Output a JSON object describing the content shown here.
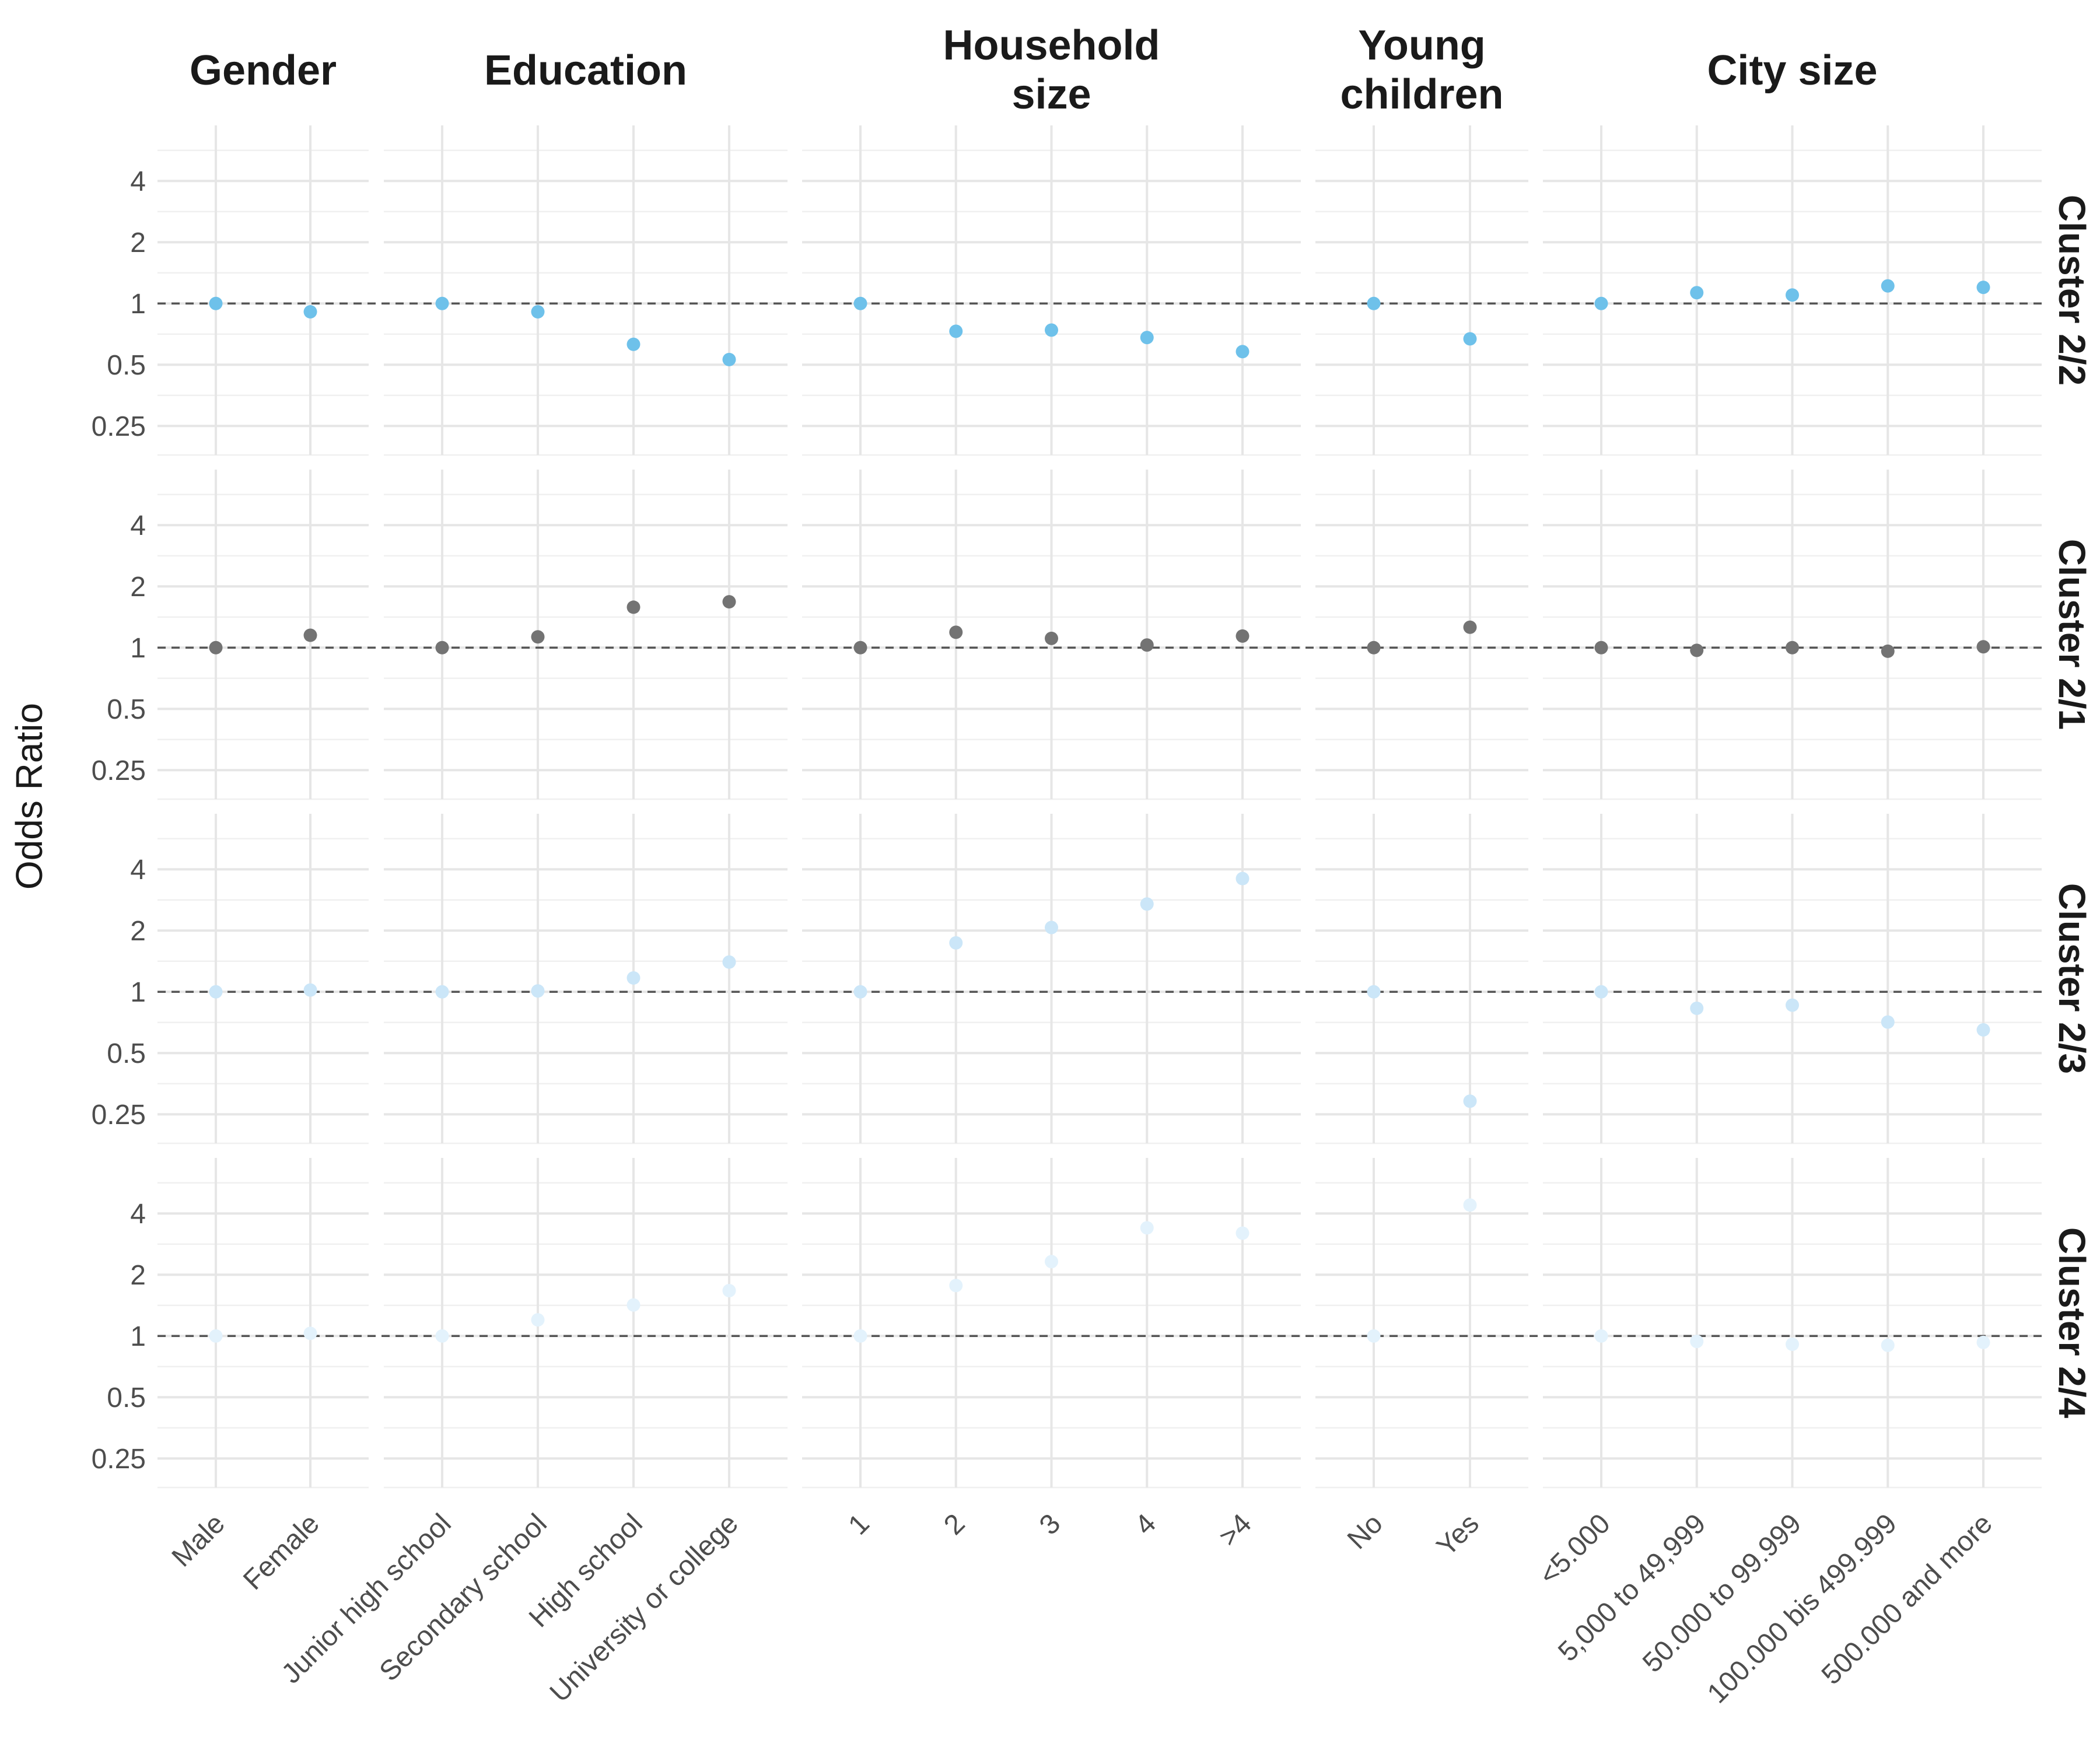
{
  "chart_data": {
    "type": "scatter",
    "ylabel": "Odds Ratio",
    "y_scale": "log2",
    "ylim": [
      0.18,
      7.5
    ],
    "y_ticks": [
      "0.25",
      "0.5",
      "1",
      "2",
      "4"
    ],
    "y_tick_values": [
      0.25,
      0.5,
      1,
      2,
      4
    ],
    "reference_line": 1,
    "grid": true,
    "facet_columns": [
      {
        "title": "Gender",
        "categories": [
          "Male",
          "Female"
        ]
      },
      {
        "title": "Education",
        "categories": [
          "Junior high school",
          "Secondary school",
          "High school",
          "University or college"
        ]
      },
      {
        "title": "Household\nsize",
        "categories": [
          "1",
          "2",
          "3",
          "4",
          ">4"
        ]
      },
      {
        "title": "Young\nchildren",
        "categories": [
          "No",
          "Yes"
        ]
      },
      {
        "title": "City size",
        "categories": [
          "<5.000",
          "5,000 to 49,999",
          "50.000 to 99.999",
          "100.000 bis 499.999",
          "500.000 and more"
        ]
      }
    ],
    "facet_rows": [
      {
        "label": "Cluster 2/2",
        "color": "#6ec1ea",
        "values": [
          [
            1,
            0.91
          ],
          [
            1,
            0.91,
            0.63,
            0.53
          ],
          [
            1,
            0.73,
            0.74,
            0.68,
            0.58
          ],
          [
            1,
            0.67
          ],
          [
            1,
            1.13,
            1.1,
            1.22,
            1.2
          ]
        ]
      },
      {
        "label": "Cluster 2/1",
        "color": "#737373",
        "values": [
          [
            1,
            1.15
          ],
          [
            1,
            1.13,
            1.58,
            1.68
          ],
          [
            1,
            1.19,
            1.11,
            1.03,
            1.14
          ],
          [
            1,
            1.26
          ],
          [
            1,
            0.97,
            1,
            0.96,
            1.01
          ]
        ]
      },
      {
        "label": "Cluster 2/3",
        "color": "#cbe6f8",
        "values": [
          [
            1,
            1.02
          ],
          [
            1,
            1.01,
            1.17,
            1.4
          ],
          [
            1,
            1.74,
            2.07,
            2.7,
            3.6
          ],
          [
            1,
            0.29
          ],
          [
            1,
            0.83,
            0.86,
            0.71,
            0.65
          ]
        ]
      },
      {
        "label": "Cluster 2/4",
        "color": "#e3f2fc",
        "values": [
          [
            1,
            1.03
          ],
          [
            1,
            1.2,
            1.42,
            1.67
          ],
          [
            1,
            1.77,
            2.32,
            3.4,
            3.2
          ],
          [
            1,
            4.4
          ],
          [
            1,
            0.94,
            0.91,
            0.9,
            0.93
          ]
        ]
      }
    ]
  }
}
